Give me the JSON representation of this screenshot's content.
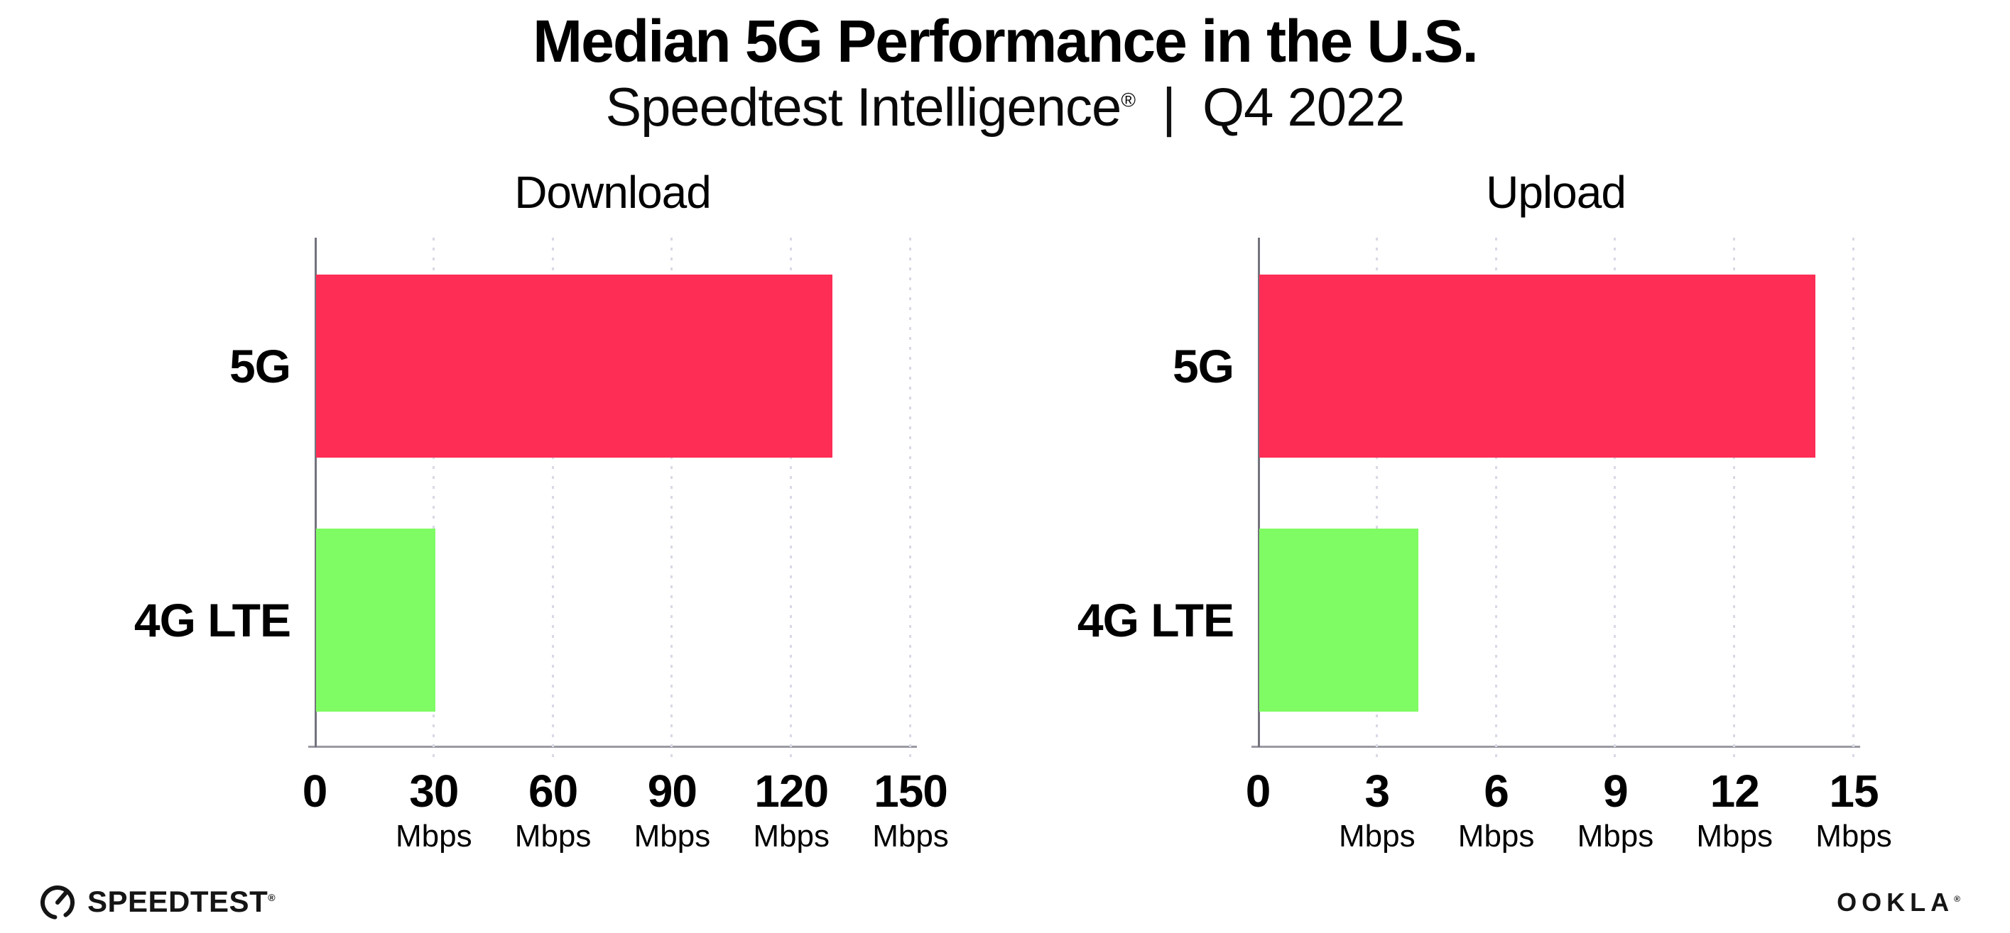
{
  "header": {
    "title": "Median 5G Performance in the U.S.",
    "subtitle_product": "Speedtest Intelligence",
    "subtitle_reg": "®",
    "subtitle_divider": "|",
    "subtitle_period": "Q4 2022"
  },
  "chart_data": [
    {
      "type": "bar",
      "orientation": "horizontal",
      "title": "Download",
      "categories": [
        "5G",
        "4G LTE"
      ],
      "values": [
        130,
        30
      ],
      "unit": "Mbps",
      "xticks": [
        0,
        30,
        60,
        90,
        120,
        150
      ],
      "xlim": [
        0,
        150
      ],
      "grid": "dotted-vertical",
      "legend": "none",
      "bar_colors": [
        "#FD2D55",
        "#7FFB63"
      ]
    },
    {
      "type": "bar",
      "orientation": "horizontal",
      "title": "Upload",
      "categories": [
        "5G",
        "4G LTE"
      ],
      "values": [
        14,
        4
      ],
      "unit": "Mbps",
      "xticks": [
        0,
        3,
        6,
        9,
        12,
        15
      ],
      "xlim": [
        0,
        15
      ],
      "grid": "dotted-vertical",
      "legend": "none",
      "bar_colors": [
        "#FD2D55",
        "#7FFB63"
      ]
    }
  ],
  "footer": {
    "speedtest_brand": "SPEEDTEST",
    "speedtest_reg": "®",
    "speedtest_icon": "gauge-icon",
    "ookla_brand": "OOKLA",
    "ookla_reg": "®"
  },
  "colors": {
    "bar_5g": "#FD2D55",
    "bar_4g_lte": "#7FFB63",
    "gridline": "#D8D9E6",
    "axis_x": "#9A9AA2",
    "axis_y": "#73737D",
    "text": "#000000",
    "background": "#FFFFFF"
  }
}
